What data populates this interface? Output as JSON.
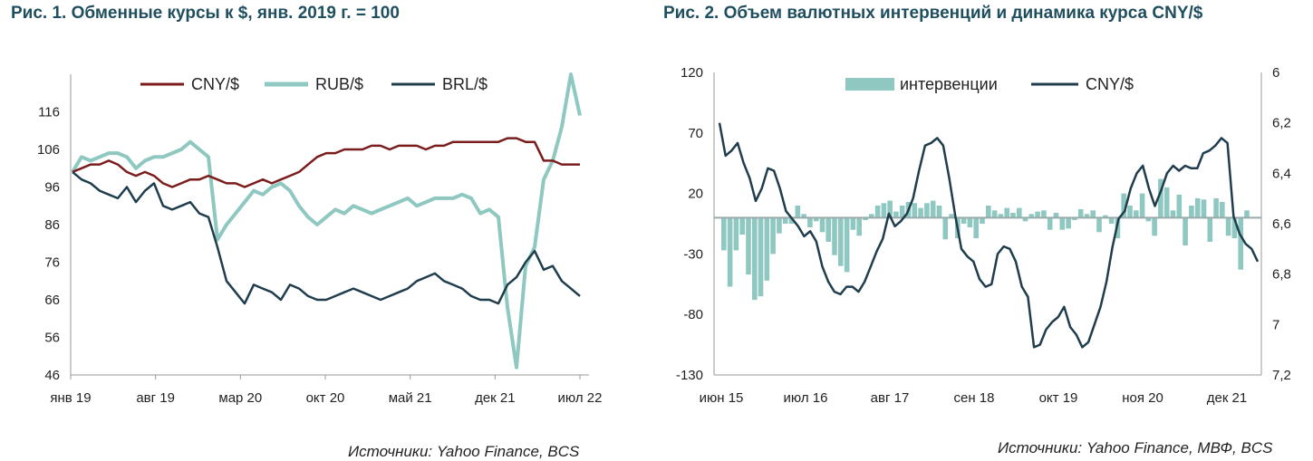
{
  "fig1": {
    "title": "Рис. 1. Обменные курсы к $, янв. 2019 г. = 100",
    "source": "Источники: Yahoo Finance, BCS"
  },
  "fig2": {
    "title": "Рис. 2. Объем валютных интервенций и динамика курса CNY/$",
    "source": "Источники: Yahoo Finance, МВФ, BCS"
  },
  "colors": {
    "cny": "#7b1c1c",
    "rub": "#8ec8c0",
    "brl": "#1f3d4d",
    "bars": "#8ec8c0",
    "cny2": "#1f3d4d"
  },
  "chart_data": [
    {
      "type": "line",
      "x_labels": [
        "янв 19",
        "авг 19",
        "мар 20",
        "окт 20",
        "май 21",
        "дек 21",
        "июл 22"
      ],
      "ylim": [
        46,
        126
      ],
      "y_ticks": [
        46,
        56,
        66,
        76,
        86,
        96,
        106,
        116
      ],
      "legend_position": "top",
      "series": [
        {
          "name": "CNY/$",
          "color": "#7b1c1c",
          "values": [
            100,
            101,
            102,
            102,
            103,
            102,
            100,
            99,
            100,
            99,
            97,
            96,
            97,
            98,
            98,
            99,
            98,
            97,
            97,
            96,
            97,
            98,
            97,
            98,
            99,
            100,
            102,
            104,
            105,
            105,
            106,
            106,
            106,
            107,
            107,
            106,
            107,
            107,
            107,
            106,
            107,
            107,
            108,
            108,
            108,
            108,
            108,
            108,
            109,
            109,
            108,
            108,
            103,
            103,
            102,
            102,
            102
          ]
        },
        {
          "name": "RUB/$",
          "color": "#8ec8c0",
          "values": [
            100,
            104,
            103,
            104,
            105,
            105,
            104,
            101,
            103,
            104,
            104,
            105,
            106,
            108,
            106,
            104,
            82,
            86,
            89,
            92,
            95,
            94,
            96,
            97,
            95,
            91,
            88,
            86,
            88,
            90,
            89,
            91,
            90,
            89,
            90,
            91,
            92,
            93,
            91,
            92,
            93,
            93,
            93,
            94,
            93,
            89,
            90,
            88,
            64,
            48,
            75,
            80,
            98,
            103,
            112,
            126,
            115
          ]
        },
        {
          "name": "BRL/$",
          "color": "#1f3d4d",
          "values": [
            100,
            98,
            97,
            95,
            94,
            93,
            96,
            92,
            95,
            97,
            91,
            90,
            91,
            92,
            89,
            88,
            80,
            71,
            68,
            65,
            70,
            69,
            68,
            66,
            70,
            69,
            67,
            66,
            66,
            67,
            68,
            69,
            68,
            67,
            66,
            67,
            68,
            69,
            71,
            72,
            73,
            71,
            70,
            69,
            67,
            66,
            66,
            65,
            70,
            72,
            76,
            79,
            74,
            75,
            71,
            69,
            67
          ]
        }
      ]
    },
    {
      "type": "bar+line",
      "x_labels": [
        "июн 15",
        "июл 16",
        "авг 17",
        "сен 18",
        "окт 19",
        "ноя 20",
        "дек 21"
      ],
      "ylim_left": [
        -130,
        120
      ],
      "y_ticks_left": [
        -130,
        -80,
        -30,
        20,
        70,
        120
      ],
      "ylim_right": [
        6,
        7.2
      ],
      "y_ticks_right": [
        "6",
        "6,2",
        "6,4",
        "6,6",
        "6,8",
        "7",
        "7,2"
      ],
      "legend_position": "top",
      "series": [
        {
          "name": "интервенции",
          "type": "bar",
          "color": "#8ec8c0",
          "values": [
            -27,
            -57,
            -27,
            -14,
            -47,
            -68,
            -65,
            -52,
            -30,
            -13,
            -5,
            -5,
            10,
            3,
            -8,
            -3,
            -12,
            -20,
            -31,
            -40,
            -45,
            -10,
            -15,
            -2,
            3,
            10,
            12,
            14,
            5,
            10,
            13,
            12,
            8,
            12,
            14,
            10,
            -18,
            3,
            -17,
            -5,
            -8,
            -17,
            -5,
            10,
            6,
            3,
            8,
            4,
            8,
            -3,
            3,
            5,
            6,
            -10,
            4,
            -10,
            -9,
            -2,
            7,
            3,
            6,
            -12,
            2,
            -5,
            -17,
            20,
            10,
            6,
            20,
            -3,
            -15,
            32,
            25,
            6,
            19,
            -23,
            10,
            16,
            15,
            -20,
            16,
            13,
            -15,
            -17,
            -43,
            6
          ]
        },
        {
          "name": "CNY/$",
          "type": "line",
          "color": "#1f3d4d",
          "axis": "right",
          "values": [
            6.2,
            6.33,
            6.31,
            6.28,
            6.36,
            6.42,
            6.51,
            6.46,
            6.38,
            6.39,
            6.46,
            6.55,
            6.58,
            6.61,
            6.65,
            6.63,
            6.67,
            6.77,
            6.83,
            6.87,
            6.88,
            6.85,
            6.85,
            6.87,
            6.83,
            6.77,
            6.71,
            6.66,
            6.56,
            6.61,
            6.59,
            6.56,
            6.5,
            6.39,
            6.29,
            6.28,
            6.26,
            6.29,
            6.42,
            6.57,
            6.7,
            6.73,
            6.75,
            6.82,
            6.85,
            6.84,
            6.72,
            6.69,
            6.7,
            6.75,
            6.85,
            6.89,
            7.09,
            7.08,
            7.02,
            6.99,
            6.97,
            6.93,
            7.01,
            7.04,
            7.09,
            7.07,
            7.0,
            6.93,
            6.83,
            6.69,
            6.58,
            6.55,
            6.46,
            6.4,
            6.37,
            6.46,
            6.53,
            6.47,
            6.4,
            6.37,
            6.39,
            6.37,
            6.38,
            6.38,
            6.32,
            6.31,
            6.29,
            6.26,
            6.28,
            6.57,
            6.64,
            6.68,
            6.7,
            6.75
          ]
        }
      ]
    }
  ]
}
